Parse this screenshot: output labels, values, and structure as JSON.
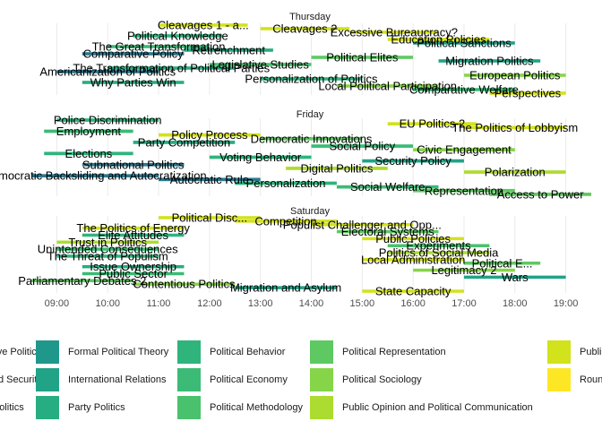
{
  "chart_data": {
    "type": "bar",
    "orientation": "horizontal-timeline",
    "title": "",
    "xlabel": "",
    "ylabel": "",
    "grid": true,
    "legend_position": "bottom",
    "xlim": [
      "08:30",
      "19:30"
    ],
    "x_ticks": [
      "09:00",
      "10:00",
      "11:00",
      "12:00",
      "13:00",
      "14:00",
      "15:00",
      "16:00",
      "17:00",
      "18:00",
      "19:00"
    ],
    "panels": [
      {
        "day": "Thursday",
        "sessions": [
          {
            "label": "Cleavages 1 - a...",
            "start": "11:00",
            "end": "12:45",
            "track": "Public Policy"
          },
          {
            "label": "Cleavages 2",
            "start": "13:00",
            "end": "14:45",
            "track": "Public Policy"
          },
          {
            "label": "Excessive Bureaucracy?",
            "start": "14:45",
            "end": "16:30",
            "track": "Public Policy"
          },
          {
            "label": "Political Knowledge",
            "start": "10:30",
            "end": "12:15",
            "track": "Political Behavior"
          },
          {
            "label": "Education Policies",
            "start": "15:30",
            "end": "17:30",
            "track": "Public Policy"
          },
          {
            "label": "Political Sanctions",
            "start": "16:00",
            "end": "18:00",
            "track": "International Relations"
          },
          {
            "label": "The Great Transformation",
            "start": "10:00",
            "end": "12:00",
            "track": "Political Economy"
          },
          {
            "label": "Retrenchment",
            "start": "11:30",
            "end": "13:15",
            "track": "Party Politics"
          },
          {
            "label": "Comparative Policy",
            "start": "09:30",
            "end": "11:30",
            "track": "Comparative Politics"
          },
          {
            "label": "Political Elites",
            "start": "14:00",
            "end": "16:00",
            "track": "Political Representation"
          },
          {
            "label": "Migration Politics",
            "start": "16:30",
            "end": "18:30",
            "track": "International Relations"
          },
          {
            "label": "Legislative Studies",
            "start": "12:00",
            "end": "14:00",
            "track": "Political Methodology"
          },
          {
            "label": "The Transformation of Political Parties",
            "start": "10:00",
            "end": "12:30",
            "track": "Party Politics"
          },
          {
            "label": "Americanization of Politics",
            "start": "09:00",
            "end": "11:00",
            "track": "Comparative Politics"
          },
          {
            "label": "European Politics",
            "start": "17:00",
            "end": "19:00",
            "track": "Political Sociology"
          },
          {
            "label": "Personalization of Politics",
            "start": "13:00",
            "end": "15:00",
            "track": "Political Behavior"
          },
          {
            "label": "Why Parties Win",
            "start": "09:30",
            "end": "11:30",
            "track": "Party Politics"
          },
          {
            "label": "Local Political Participation",
            "start": "14:30",
            "end": "16:30",
            "track": "Political Sociology"
          },
          {
            "label": "Comparative Welfare",
            "start": "16:00",
            "end": "18:00",
            "track": "Political Economy"
          },
          {
            "label": "Perspectives",
            "start": "17:30",
            "end": "19:00",
            "track": "Public Policy"
          }
        ]
      },
      {
        "day": "Friday",
        "sessions": [
          {
            "label": "Police Discrimination",
            "start": "09:00",
            "end": "11:00",
            "track": "Political Behavior"
          },
          {
            "label": "EU Politics 2",
            "start": "15:30",
            "end": "17:15",
            "track": "Public Policy"
          },
          {
            "label": "The Politics of Lobbyism",
            "start": "17:00",
            "end": "19:00",
            "track": "Public Policy"
          },
          {
            "label": "Employment",
            "start": "08:45",
            "end": "10:30",
            "track": "Political Economy"
          },
          {
            "label": "Policy Process",
            "start": "11:00",
            "end": "13:00",
            "track": "Public Policy"
          },
          {
            "label": "Democratic Innovations",
            "start": "13:00",
            "end": "15:00",
            "track": "Political Representation"
          },
          {
            "label": "Party Competition",
            "start": "10:30",
            "end": "12:30",
            "track": "Party Politics"
          },
          {
            "label": "Social Policy",
            "start": "14:00",
            "end": "16:00",
            "track": "Political Economy"
          },
          {
            "label": "Civic Engagement",
            "start": "16:00",
            "end": "18:00",
            "track": "Political Sociology"
          },
          {
            "label": "Elections",
            "start": "08:45",
            "end": "10:30",
            "track": "Political Behavior"
          },
          {
            "label": "Voting Behavior",
            "start": "12:00",
            "end": "14:00",
            "track": "Political Behavior"
          },
          {
            "label": "Security Policy",
            "start": "15:00",
            "end": "17:00",
            "track": "International Relations"
          },
          {
            "label": "Subnational Politics",
            "start": "09:30",
            "end": "11:30",
            "track": "Comparative Politics"
          },
          {
            "label": "Digital Politics",
            "start": "13:30",
            "end": "15:30",
            "track": "Public Opinion and Political Communication"
          },
          {
            "label": "Polarization",
            "start": "17:00",
            "end": "19:00",
            "track": "Public Opinion and Political Communication"
          },
          {
            "label": "Democratic Backsliding and Autocratization",
            "start": "08:30",
            "end": "11:00",
            "track": "Comparative Politics"
          },
          {
            "label": "Autocratic Rule",
            "start": "11:00",
            "end": "13:00",
            "track": "Comparative Politics"
          },
          {
            "label": "Personalization",
            "start": "12:30",
            "end": "14:30",
            "track": "Political Behavior"
          },
          {
            "label": "Social Welfare",
            "start": "14:30",
            "end": "16:30",
            "track": "Political Economy"
          },
          {
            "label": "Representation",
            "start": "16:00",
            "end": "18:00",
            "track": "Political Representation"
          },
          {
            "label": "Access to Power",
            "start": "17:30",
            "end": "19:30",
            "track": "Political Representation"
          }
        ]
      },
      {
        "day": "Saturday",
        "sessions": [
          {
            "label": "Political Disc...",
            "start": "11:00",
            "end": "13:00",
            "track": "Public Policy"
          },
          {
            "label": "Competition",
            "start": "12:30",
            "end": "14:30",
            "track": "Public Policy"
          },
          {
            "label": "Populist Challenger and Opp...",
            "start": "14:00",
            "end": "16:00",
            "track": "Public Policy"
          },
          {
            "label": "The Politics of Energy",
            "start": "09:30",
            "end": "11:30",
            "track": "Public Policy"
          },
          {
            "label": "Electoral Systems",
            "start": "14:30",
            "end": "16:30",
            "track": "Political Representation"
          },
          {
            "label": "Elite Attitudes",
            "start": "09:30",
            "end": "11:30",
            "track": "Political Behavior"
          },
          {
            "label": "Public Policies",
            "start": "15:00",
            "end": "17:00",
            "track": "Public Policy"
          },
          {
            "label": "Trust in Politics",
            "start": "09:00",
            "end": "11:00",
            "track": "Public Opinion and Political Communication"
          },
          {
            "label": "Experiments",
            "start": "15:30",
            "end": "17:30",
            "track": "Political Methodology"
          },
          {
            "label": "Unintended Consequences",
            "start": "09:00",
            "end": "11:00",
            "track": "Political Economy"
          },
          {
            "label": "Politics of Social Media",
            "start": "15:30",
            "end": "17:30",
            "track": "Public Opinion and Political Communication"
          },
          {
            "label": "The Threat of Populism",
            "start": "09:00",
            "end": "11:00",
            "track": "Political Behavior"
          },
          {
            "label": "Local Administration",
            "start": "15:00",
            "end": "17:00",
            "track": "Public Policy"
          },
          {
            "label": "Political E...",
            "start": "17:00",
            "end": "18:30",
            "track": "Political Representation"
          },
          {
            "label": "Issue Ownership",
            "start": "09:30",
            "end": "11:30",
            "track": "Party Politics"
          },
          {
            "label": "Legitimacy 2",
            "start": "16:00",
            "end": "18:00",
            "track": "Political Sociology"
          },
          {
            "label": "Public Sector",
            "start": "09:30",
            "end": "11:30",
            "track": "Political Economy"
          },
          {
            "label": "Wars",
            "start": "17:00",
            "end": "19:00",
            "track": "International Relations"
          },
          {
            "label": "Parliamentary Debates 2",
            "start": "08:30",
            "end": "10:30",
            "track": "Political Representation"
          },
          {
            "label": "Contentious Politics",
            "start": "10:30",
            "end": "12:30",
            "track": "Political Sociology"
          },
          {
            "label": "Migration and Asylum",
            "start": "12:30",
            "end": "14:30",
            "track": "International Relations"
          },
          {
            "label": "State Capacity",
            "start": "15:00",
            "end": "17:00",
            "track": "Public Policy"
          }
        ]
      }
    ],
    "legend": [
      {
        "name": "Comparative Politics",
        "color": "#2a788e",
        "col": 0,
        "row": 0
      },
      {
        "name": "Conflict and Security",
        "color": "#25848e",
        "col": 0,
        "row": 1
      },
      {
        "name": "Electoral Politics",
        "color": "#21908d",
        "col": 0,
        "row": 2
      },
      {
        "name": "Formal Political Theory",
        "color": "#1f988b",
        "col": 1,
        "row": 0
      },
      {
        "name": "International Relations",
        "color": "#20a386",
        "col": 1,
        "row": 1
      },
      {
        "name": "Party Politics",
        "color": "#26ad81",
        "col": 1,
        "row": 2
      },
      {
        "name": "Political Behavior",
        "color": "#2fb47c",
        "col": 2,
        "row": 0
      },
      {
        "name": "Political Economy",
        "color": "#3bbb75",
        "col": 2,
        "row": 1
      },
      {
        "name": "Political Methodology",
        "color": "#4ac16d",
        "col": 2,
        "row": 2
      },
      {
        "name": "Political Representation",
        "color": "#5ec962",
        "col": 3,
        "row": 0
      },
      {
        "name": "Political Sociology",
        "color": "#86d549",
        "col": 3,
        "row": 1
      },
      {
        "name": "Public Opinion and Political Communication",
        "color": "#addc30",
        "col": 3,
        "row": 2
      },
      {
        "name": "Public Policy",
        "color": "#d2e21b",
        "col": 4,
        "row": 0
      },
      {
        "name": "Roundtable",
        "color": "#fde725",
        "col": 4,
        "row": 1
      }
    ]
  }
}
